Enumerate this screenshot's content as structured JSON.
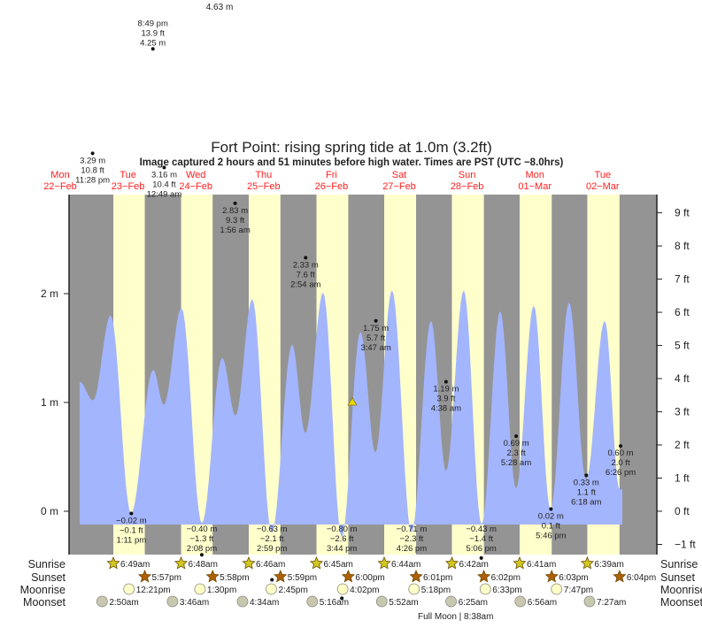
{
  "chart_data": {
    "type": "area",
    "title": "Fort Point: rising  spring tide at 1.0m (3.2ft)",
    "subtitle": "Image captured 2 hours and 51 minutes before high water. Times are PST (UTC −8.0hrs)",
    "days": [
      {
        "dow": "Mon",
        "date": "22−Feb"
      },
      {
        "dow": "Tue",
        "date": "23−Feb"
      },
      {
        "dow": "Wed",
        "date": "24−Feb"
      },
      {
        "dow": "Thu",
        "date": "25−Feb"
      },
      {
        "dow": "Fri",
        "date": "26−Feb"
      },
      {
        "dow": "Sat",
        "date": "27−Feb"
      },
      {
        "dow": "Sun",
        "date": "28−Feb"
      },
      {
        "dow": "Mon",
        "date": "01−Mar"
      },
      {
        "dow": "Tue",
        "date": "02−Mar"
      }
    ],
    "y_left": {
      "unit": "m",
      "ticks": [
        0,
        1,
        2
      ],
      "labels": [
        "0 m",
        "1 m",
        "2 m"
      ]
    },
    "y_right": {
      "unit": "ft",
      "ticks": [
        -1,
        0,
        1,
        2,
        3,
        4,
        5,
        6,
        7,
        8,
        9
      ],
      "labels": [
        "−1 ft",
        "0 ft",
        "1 ft",
        "2 ft",
        "3 ft",
        "4 ft",
        "5 ft",
        "6 ft",
        "7 ft",
        "8 ft",
        "9 ft"
      ]
    },
    "ylim_m": [
      -0.4,
      2.9
    ],
    "current_level_m": 1.0,
    "tide_curve_m": [
      [
        "21-Feb 18:54",
        1.19
      ],
      [
        "21-Feb 23:36",
        1.02
      ],
      [
        "22-Feb 05:52",
        1.8
      ],
      [
        "22-Feb 13:04",
        -0.02
      ],
      [
        "22-Feb 20:54",
        1.3
      ],
      [
        "23-Feb 00:40",
        0.98
      ],
      [
        "23-Feb 06:56",
        1.87
      ],
      [
        "23-Feb 14:09",
        -0.11
      ],
      [
        "23-Feb 21:22",
        1.41
      ],
      [
        "24-Feb 02:04",
        0.88
      ],
      [
        "24-Feb 08:00",
        1.95
      ],
      [
        "24-Feb 14:54",
        -0.2
      ],
      [
        "24-Feb 22:06",
        1.53
      ],
      [
        "25-Feb 02:48",
        0.72
      ],
      [
        "25-Feb 09:06",
        2.01
      ],
      [
        "25-Feb 15:42",
        -0.24
      ],
      [
        "25-Feb 22:18",
        1.65
      ],
      [
        "26-Feb 03:36",
        0.54
      ],
      [
        "26-Feb 09:30",
        2.03
      ],
      [
        "26-Feb 16:24",
        -0.2
      ],
      [
        "26-Feb 23:18",
        1.75
      ],
      [
        "27-Feb 04:36",
        0.37
      ],
      [
        "27-Feb 10:54",
        2.03
      ],
      [
        "27-Feb 17:12",
        -0.12
      ],
      [
        "27-Feb 23:48",
        1.84
      ],
      [
        "28-Feb 05:24",
        0.21
      ],
      [
        "28-Feb 11:42",
        1.89
      ],
      [
        "28-Feb 17:36",
        0.02
      ],
      [
        "01-Mar 00:12",
        1.92
      ],
      [
        "01-Mar 06:12",
        0.29
      ],
      [
        "01-Mar 12:48",
        1.75
      ],
      [
        "01-Mar 18:06",
        0.2
      ]
    ],
    "extremes": [
      {
        "at": "22-Feb 20:49",
        "m": "4.25 m",
        "ft": "13.9 ft",
        "time": "8:49 pm",
        "value": 4.25,
        "above": true
      },
      {
        "at": "21-Feb 23:28",
        "m": "3.29 m",
        "ft": "10.8 ft",
        "time": "11:28 pm",
        "value": 3.29
      },
      {
        "at": "23-Feb 00:49",
        "m": "3.16 m",
        "ft": "10.4 ft",
        "time": "12:49 am",
        "value": 3.16
      },
      {
        "at": "24-Feb 01:56",
        "m": "2.83 m",
        "ft": "9.3 ft",
        "time": "1:56 am",
        "value": 2.83
      },
      {
        "at": "25-Feb 02:54",
        "m": "2.33 m",
        "ft": "7.6 ft",
        "time": "2:54 am",
        "value": 2.33
      },
      {
        "at": "26-Feb 03:47",
        "m": "1.75 m",
        "ft": "5.7 ft",
        "time": "3:47 am",
        "value": 1.75
      },
      {
        "at": "27-Feb 04:38",
        "m": "1.19 m",
        "ft": "3.9 ft",
        "time": "4:38 am",
        "value": 1.19
      },
      {
        "at": "28-Feb 05:28",
        "m": "0.69 m",
        "ft": "2.3 ft",
        "time": "5:28 am",
        "value": 0.69
      },
      {
        "at": "01-Mar 06:18",
        "m": "0.33 m",
        "ft": "1.1 ft",
        "time": "6:18 am",
        "value": 0.33
      },
      {
        "at": "01-Mar 18:26",
        "m": "0.60 m",
        "ft": "2.0 ft",
        "time": "6:26 pm",
        "value": 0.6
      },
      {
        "at": "28-Feb 17:46",
        "m": "0.02 m",
        "ft": "0.1 ft",
        "time": "5:46 pm",
        "value": 0.02
      },
      {
        "at": "22-Feb 13:11",
        "m": "−0.02 m",
        "ft": "−0.1 ft",
        "time": "1:11 pm",
        "value": -0.02
      },
      {
        "at": "23-Feb 14:08",
        "m": "−0.40 m",
        "ft": "−1.3 ft",
        "time": "2:08 pm",
        "value": -0.4
      },
      {
        "at": "24-Feb 14:59",
        "m": "−0.63 m",
        "ft": "−2.1 ft",
        "time": "2:59 pm",
        "value": -0.63
      },
      {
        "at": "25-Feb 15:44",
        "m": "−0.80 m",
        "ft": "−2.6 ft",
        "time": "3:44 pm",
        "value": -0.8
      },
      {
        "at": "26-Feb 16:26",
        "m": "−0.71 m",
        "ft": "−2.3 ft",
        "time": "4:26 pm",
        "value": -0.71
      },
      {
        "at": "27-Feb 17:06",
        "m": "−0.43 m",
        "ft": "−1.4 ft",
        "time": "5:06 pm",
        "value": -0.43
      }
    ],
    "cutoff_label": "4.63 m",
    "rows": {
      "sunrise": "Sunrise",
      "sunset": "Sunset",
      "moonrise": "Moonrise",
      "moonset": "Moonset"
    },
    "sunrise": [
      [
        "22-Feb 06:49",
        "6:49am"
      ],
      [
        "23-Feb 06:48",
        "6:48am"
      ],
      [
        "24-Feb 06:46",
        "6:46am"
      ],
      [
        "25-Feb 06:45",
        "6:45am"
      ],
      [
        "26-Feb 06:44",
        "6:44am"
      ],
      [
        "27-Feb 06:42",
        "6:42am"
      ],
      [
        "28-Feb 06:41",
        "6:41am"
      ],
      [
        "01-Mar 06:39",
        "6:39am"
      ]
    ],
    "sunset": [
      [
        "22-Feb 17:57",
        "5:57pm"
      ],
      [
        "23-Feb 17:58",
        "5:58pm"
      ],
      [
        "24-Feb 17:59",
        "5:59pm"
      ],
      [
        "25-Feb 18:00",
        "6:00pm"
      ],
      [
        "26-Feb 18:01",
        "6:01pm"
      ],
      [
        "27-Feb 18:02",
        "6:02pm"
      ],
      [
        "28-Feb 18:03",
        "6:03pm"
      ],
      [
        "01-Mar 18:04",
        "6:04pm"
      ]
    ],
    "moonrise": [
      [
        "22-Feb 12:21",
        "12:21pm"
      ],
      [
        "23-Feb 13:30",
        "1:30pm"
      ],
      [
        "24-Feb 14:45",
        "2:45pm"
      ],
      [
        "25-Feb 16:02",
        "4:02pm"
      ],
      [
        "26-Feb 17:18",
        "5:18pm"
      ],
      [
        "27-Feb 18:33",
        "6:33pm"
      ],
      [
        "28-Feb 19:47",
        "7:47pm"
      ]
    ],
    "moonset": [
      [
        "22-Feb 02:50",
        "2:50am"
      ],
      [
        "23-Feb 03:46",
        "3:46am"
      ],
      [
        "24-Feb 04:34",
        "4:34am"
      ],
      [
        "25-Feb 05:16",
        "5:16am"
      ],
      [
        "26-Feb 05:52",
        "5:52am"
      ],
      [
        "27-Feb 06:25",
        "6:25am"
      ],
      [
        "28-Feb 06:56",
        "6:56am"
      ],
      [
        "01-Mar 07:27",
        "7:27am"
      ]
    ],
    "full_moon": "Full Moon | 8:38am",
    "colors": {
      "night": "#949494",
      "day": "#ffffcc",
      "water": "#a3b5fc",
      "day_label": "#ff2020",
      "sunrise": "#d0c820",
      "sunset": "#b06008",
      "moonrise": "#ffffc8",
      "moonset": "#c8c8b0",
      "marker": "#e8d800"
    }
  }
}
